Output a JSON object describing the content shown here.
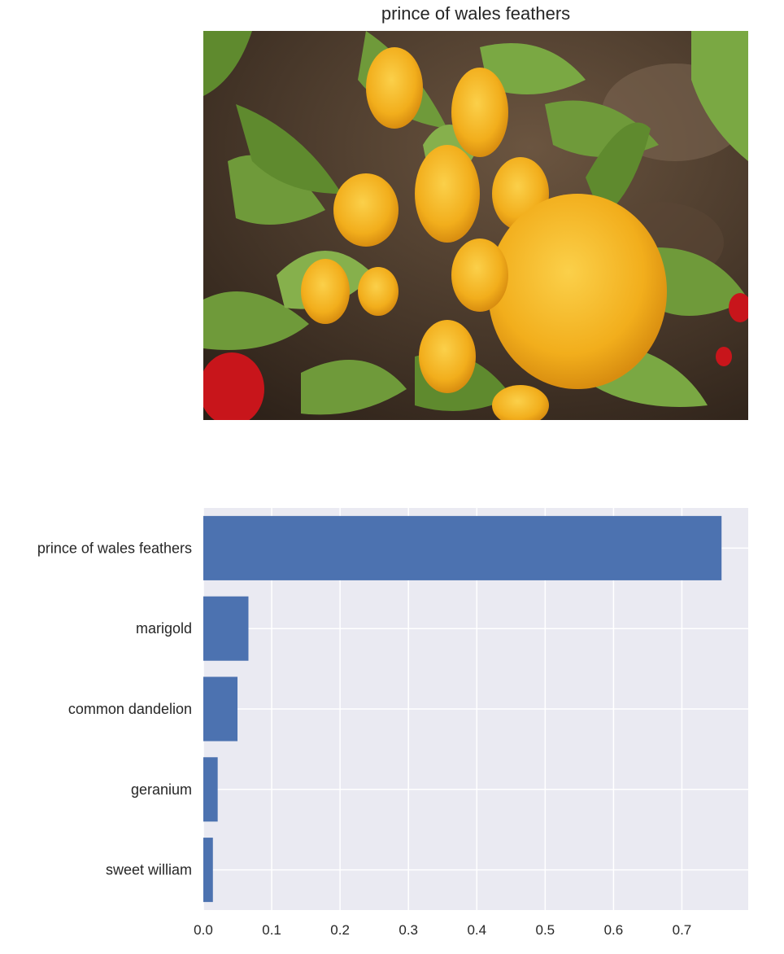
{
  "image_panel": {
    "title": "prince of wales feathers",
    "photo_subject": "yellow plumed celosia flowers with green leaves and red flowers at lower left"
  },
  "chart_data": {
    "type": "bar",
    "orientation": "horizontal",
    "categories": [
      "prince of wales feathers",
      "marigold",
      "common dandelion",
      "geranium",
      "sweet william"
    ],
    "values": [
      0.758,
      0.066,
      0.05,
      0.021,
      0.014
    ],
    "xlim": [
      0,
      0.797
    ],
    "xticks": [
      "0.0",
      "0.1",
      "0.2",
      "0.3",
      "0.4",
      "0.5",
      "0.6",
      "0.7"
    ],
    "grid": true,
    "colors": {
      "bar": "#4c72b0",
      "background": "#eaeaf2",
      "grid": "#ffffff"
    }
  }
}
